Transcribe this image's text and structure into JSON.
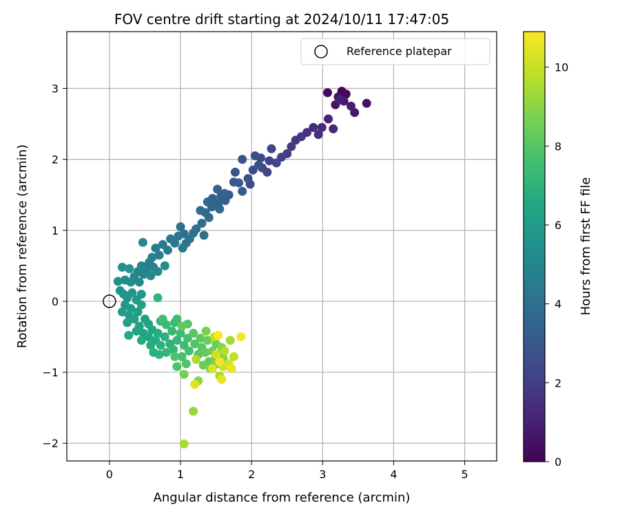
{
  "chart_data": {
    "type": "scatter",
    "title": "FOV centre drift starting at 2024/10/11 17:47:05",
    "xlabel": "Angular distance from reference (arcmin)",
    "ylabel": "Rotation from reference (arcmin)",
    "xlim": [
      -0.6,
      5.45
    ],
    "ylim": [
      -2.25,
      3.8
    ],
    "xticks": [
      0,
      1,
      2,
      3,
      4,
      5
    ],
    "yticks": [
      -2,
      -1,
      0,
      1,
      2,
      3
    ],
    "grid": true,
    "legend": {
      "placement": "top-right",
      "entries": [
        "Reference platepar"
      ]
    },
    "reference_point": {
      "x": 0,
      "y": 0
    },
    "colorbar": {
      "label": "Hours from first FF file",
      "colormap": "viridis",
      "range": [
        0,
        10.9
      ],
      "ticks": [
        0,
        2,
        4,
        6,
        8,
        10
      ]
    },
    "series": [
      {
        "color_by": "hours",
        "points": [
          {
            "x": 3.27,
            "y": 2.96,
            "h": 0.1
          },
          {
            "x": 3.33,
            "y": 2.92,
            "h": 0.2
          },
          {
            "x": 3.07,
            "y": 2.94,
            "h": 0.3
          },
          {
            "x": 3.22,
            "y": 2.88,
            "h": 0.4
          },
          {
            "x": 3.18,
            "y": 2.77,
            "h": 0.5
          },
          {
            "x": 3.62,
            "y": 2.79,
            "h": 0.6
          },
          {
            "x": 3.45,
            "y": 2.66,
            "h": 0.7
          },
          {
            "x": 3.3,
            "y": 2.82,
            "h": 0.8
          },
          {
            "x": 3.4,
            "y": 2.75,
            "h": 0.9
          },
          {
            "x": 3.24,
            "y": 2.84,
            "h": 1.0
          },
          {
            "x": 3.08,
            "y": 2.57,
            "h": 1.1
          },
          {
            "x": 3.15,
            "y": 2.43,
            "h": 1.2
          },
          {
            "x": 2.99,
            "y": 2.45,
            "h": 1.3
          },
          {
            "x": 2.87,
            "y": 2.45,
            "h": 1.4
          },
          {
            "x": 2.94,
            "y": 2.35,
            "h": 1.5
          },
          {
            "x": 2.78,
            "y": 2.38,
            "h": 1.6
          },
          {
            "x": 2.7,
            "y": 2.32,
            "h": 1.7
          },
          {
            "x": 2.62,
            "y": 2.27,
            "h": 1.8
          },
          {
            "x": 2.56,
            "y": 2.18,
            "h": 1.9
          },
          {
            "x": 2.5,
            "y": 2.08,
            "h": 2.0
          },
          {
            "x": 2.42,
            "y": 2.03,
            "h": 2.1
          },
          {
            "x": 2.35,
            "y": 1.95,
            "h": 2.2
          },
          {
            "x": 2.25,
            "y": 1.98,
            "h": 2.2
          },
          {
            "x": 2.22,
            "y": 1.82,
            "h": 2.3
          },
          {
            "x": 2.15,
            "y": 1.88,
            "h": 2.4
          },
          {
            "x": 2.13,
            "y": 2.02,
            "h": 2.5
          },
          {
            "x": 2.02,
            "y": 1.85,
            "h": 2.5
          },
          {
            "x": 1.98,
            "y": 1.65,
            "h": 2.6
          },
          {
            "x": 1.95,
            "y": 1.73,
            "h": 2.7
          },
          {
            "x": 2.1,
            "y": 1.92,
            "h": 2.7
          },
          {
            "x": 2.28,
            "y": 2.15,
            "h": 2.2
          },
          {
            "x": 2.05,
            "y": 2.05,
            "h": 2.6
          },
          {
            "x": 1.87,
            "y": 2.0,
            "h": 2.8
          },
          {
            "x": 1.77,
            "y": 1.82,
            "h": 2.9
          },
          {
            "x": 1.75,
            "y": 1.68,
            "h": 3.0
          },
          {
            "x": 1.87,
            "y": 1.55,
            "h": 3.0
          },
          {
            "x": 1.82,
            "y": 1.67,
            "h": 3.1
          },
          {
            "x": 1.68,
            "y": 1.5,
            "h": 3.2
          },
          {
            "x": 1.57,
            "y": 1.48,
            "h": 3.3
          },
          {
            "x": 1.63,
            "y": 1.42,
            "h": 3.3
          },
          {
            "x": 1.53,
            "y": 1.38,
            "h": 3.4
          },
          {
            "x": 1.45,
            "y": 1.45,
            "h": 3.4
          },
          {
            "x": 1.52,
            "y": 1.58,
            "h": 3.5
          },
          {
            "x": 1.62,
            "y": 1.52,
            "h": 3.5
          },
          {
            "x": 1.55,
            "y": 1.3,
            "h": 3.6
          },
          {
            "x": 1.44,
            "y": 1.33,
            "h": 3.6
          },
          {
            "x": 1.38,
            "y": 1.4,
            "h": 3.7
          },
          {
            "x": 1.35,
            "y": 1.25,
            "h": 3.7
          },
          {
            "x": 1.28,
            "y": 1.28,
            "h": 3.8
          },
          {
            "x": 1.4,
            "y": 1.18,
            "h": 3.8
          },
          {
            "x": 1.3,
            "y": 1.1,
            "h": 3.9
          },
          {
            "x": 1.22,
            "y": 1.02,
            "h": 3.9
          },
          {
            "x": 1.33,
            "y": 0.93,
            "h": 4.0
          },
          {
            "x": 1.18,
            "y": 0.96,
            "h": 4.0
          },
          {
            "x": 1.13,
            "y": 0.88,
            "h": 4.1
          },
          {
            "x": 1.05,
            "y": 0.95,
            "h": 4.1
          },
          {
            "x": 1.0,
            "y": 1.05,
            "h": 4.2
          },
          {
            "x": 1.08,
            "y": 0.82,
            "h": 4.2
          },
          {
            "x": 0.97,
            "y": 0.92,
            "h": 4.3
          },
          {
            "x": 0.92,
            "y": 0.82,
            "h": 4.3
          },
          {
            "x": 1.03,
            "y": 0.75,
            "h": 4.4
          },
          {
            "x": 0.86,
            "y": 0.88,
            "h": 4.4
          },
          {
            "x": 0.82,
            "y": 0.72,
            "h": 4.5
          },
          {
            "x": 0.75,
            "y": 0.8,
            "h": 4.5
          },
          {
            "x": 0.7,
            "y": 0.65,
            "h": 4.6
          },
          {
            "x": 0.65,
            "y": 0.75,
            "h": 4.6
          },
          {
            "x": 0.6,
            "y": 0.62,
            "h": 4.7
          },
          {
            "x": 0.56,
            "y": 0.55,
            "h": 4.7
          },
          {
            "x": 0.62,
            "y": 0.48,
            "h": 4.8
          },
          {
            "x": 0.52,
            "y": 0.45,
            "h": 4.8
          },
          {
            "x": 0.45,
            "y": 0.5,
            "h": 4.9
          },
          {
            "x": 0.48,
            "y": 0.38,
            "h": 4.9
          },
          {
            "x": 0.4,
            "y": 0.42,
            "h": 5.0
          },
          {
            "x": 0.35,
            "y": 0.35,
            "h": 5.0
          },
          {
            "x": 0.47,
            "y": 0.83,
            "h": 5.0
          },
          {
            "x": 0.58,
            "y": 0.36,
            "h": 5.1
          },
          {
            "x": 0.68,
            "y": 0.42,
            "h": 5.1
          },
          {
            "x": 0.78,
            "y": 0.5,
            "h": 5.2
          },
          {
            "x": 0.42,
            "y": 0.27,
            "h": 5.2
          },
          {
            "x": 0.3,
            "y": 0.27,
            "h": 5.3
          },
          {
            "x": 0.22,
            "y": 0.3,
            "h": 5.3
          },
          {
            "x": 0.12,
            "y": 0.28,
            "h": 5.4
          },
          {
            "x": 0.18,
            "y": 0.48,
            "h": 5.4
          },
          {
            "x": 0.28,
            "y": 0.46,
            "h": 5.5
          },
          {
            "x": 0.2,
            "y": 0.1,
            "h": 5.5
          },
          {
            "x": 0.15,
            "y": 0.15,
            "h": 5.6
          },
          {
            "x": 0.25,
            "y": 0.05,
            "h": 5.6
          },
          {
            "x": 0.32,
            "y": 0.12,
            "h": 5.7
          },
          {
            "x": 0.45,
            "y": 0.1,
            "h": 5.7
          },
          {
            "x": 0.38,
            "y": 0.02,
            "h": 5.8
          },
          {
            "x": 0.22,
            "y": -0.05,
            "h": 5.8
          },
          {
            "x": 0.3,
            "y": -0.1,
            "h": 5.9
          },
          {
            "x": 0.18,
            "y": -0.15,
            "h": 5.9
          },
          {
            "x": 0.28,
            "y": -0.2,
            "h": 6.0
          },
          {
            "x": 0.4,
            "y": -0.15,
            "h": 6.0
          },
          {
            "x": 0.35,
            "y": -0.25,
            "h": 6.1
          },
          {
            "x": 0.25,
            "y": -0.3,
            "h": 6.1
          },
          {
            "x": 0.45,
            "y": -0.05,
            "h": 6.2
          },
          {
            "x": 0.5,
            "y": -0.25,
            "h": 6.2
          },
          {
            "x": 0.42,
            "y": -0.35,
            "h": 6.3
          },
          {
            "x": 0.55,
            "y": -0.32,
            "h": 6.3
          },
          {
            "x": 0.38,
            "y": -0.42,
            "h": 6.4
          },
          {
            "x": 0.48,
            "y": -0.45,
            "h": 6.4
          },
          {
            "x": 0.6,
            "y": -0.4,
            "h": 6.5
          },
          {
            "x": 0.55,
            "y": -0.5,
            "h": 6.5
          },
          {
            "x": 0.27,
            "y": -0.48,
            "h": 6.6
          },
          {
            "x": 0.45,
            "y": -0.55,
            "h": 6.6
          },
          {
            "x": 0.65,
            "y": -0.55,
            "h": 6.7
          },
          {
            "x": 0.58,
            "y": -0.62,
            "h": 6.7
          },
          {
            "x": 0.68,
            "y": -0.45,
            "h": 6.8
          },
          {
            "x": 0.62,
            "y": -0.72,
            "h": 6.8
          },
          {
            "x": 0.72,
            "y": -0.62,
            "h": 6.9
          },
          {
            "x": 0.78,
            "y": -0.5,
            "h": 6.9
          },
          {
            "x": 0.7,
            "y": -0.75,
            "h": 7.0
          },
          {
            "x": 0.85,
            "y": -0.6,
            "h": 7.0
          },
          {
            "x": 0.8,
            "y": -0.72,
            "h": 7.1
          },
          {
            "x": 0.72,
            "y": -0.28,
            "h": 7.1
          },
          {
            "x": 0.68,
            "y": 0.05,
            "h": 7.1
          },
          {
            "x": 0.9,
            "y": -0.68,
            "h": 7.2
          },
          {
            "x": 0.95,
            "y": -0.55,
            "h": 7.2
          },
          {
            "x": 0.88,
            "y": -0.42,
            "h": 7.3
          },
          {
            "x": 0.92,
            "y": -0.3,
            "h": 7.3
          },
          {
            "x": 0.8,
            "y": -0.33,
            "h": 7.4
          },
          {
            "x": 1.0,
            "y": -0.45,
            "h": 7.4
          },
          {
            "x": 1.05,
            "y": -0.62,
            "h": 7.5
          },
          {
            "x": 0.95,
            "y": -0.25,
            "h": 7.5
          },
          {
            "x": 0.75,
            "y": -0.25,
            "h": 7.6
          },
          {
            "x": 1.1,
            "y": -0.52,
            "h": 7.6
          },
          {
            "x": 1.12,
            "y": -0.7,
            "h": 7.7
          },
          {
            "x": 1.02,
            "y": -0.78,
            "h": 7.7
          },
          {
            "x": 0.92,
            "y": -0.78,
            "h": 7.8
          },
          {
            "x": 0.95,
            "y": -0.92,
            "h": 7.8
          },
          {
            "x": 1.08,
            "y": -0.88,
            "h": 7.9
          },
          {
            "x": 1.2,
            "y": -0.6,
            "h": 7.9
          },
          {
            "x": 1.25,
            "y": -0.75,
            "h": 8.0
          },
          {
            "x": 1.1,
            "y": -0.32,
            "h": 8.0
          },
          {
            "x": 1.18,
            "y": -0.45,
            "h": 8.1
          },
          {
            "x": 1.3,
            "y": -0.65,
            "h": 8.1
          },
          {
            "x": 1.02,
            "y": -0.35,
            "h": 8.2
          },
          {
            "x": 1.28,
            "y": -0.52,
            "h": 8.2
          },
          {
            "x": 1.35,
            "y": -0.72,
            "h": 8.3
          },
          {
            "x": 1.4,
            "y": -0.85,
            "h": 8.3
          },
          {
            "x": 1.32,
            "y": -0.9,
            "h": 8.4
          },
          {
            "x": 1.38,
            "y": -0.55,
            "h": 8.4
          },
          {
            "x": 1.45,
            "y": -0.7,
            "h": 8.5
          },
          {
            "x": 1.5,
            "y": -0.6,
            "h": 8.5
          },
          {
            "x": 1.05,
            "y": -1.03,
            "h": 8.6
          },
          {
            "x": 1.48,
            "y": -0.82,
            "h": 8.6
          },
          {
            "x": 1.55,
            "y": -0.75,
            "h": 8.7
          },
          {
            "x": 1.36,
            "y": -0.42,
            "h": 8.7
          },
          {
            "x": 1.42,
            "y": -0.95,
            "h": 8.8
          },
          {
            "x": 1.52,
            "y": -0.88,
            "h": 8.8
          },
          {
            "x": 1.6,
            "y": -0.8,
            "h": 8.9
          },
          {
            "x": 1.58,
            "y": -0.65,
            "h": 8.9
          },
          {
            "x": 1.25,
            "y": -1.12,
            "h": 9.0
          },
          {
            "x": 1.18,
            "y": -1.55,
            "h": 9.2
          },
          {
            "x": 1.65,
            "y": -0.9,
            "h": 9.3
          },
          {
            "x": 1.7,
            "y": -0.55,
            "h": 9.4
          },
          {
            "x": 1.05,
            "y": -2.01,
            "h": 9.5
          },
          {
            "x": 1.55,
            "y": -1.05,
            "h": 9.5
          },
          {
            "x": 1.22,
            "y": -0.82,
            "h": 9.6
          },
          {
            "x": 1.62,
            "y": -0.7,
            "h": 9.7
          },
          {
            "x": 1.48,
            "y": -0.5,
            "h": 9.8
          },
          {
            "x": 1.75,
            "y": -0.78,
            "h": 9.9
          },
          {
            "x": 1.6,
            "y": -0.92,
            "h": 10.0
          },
          {
            "x": 1.5,
            "y": -0.75,
            "h": 10.1
          },
          {
            "x": 1.68,
            "y": -0.88,
            "h": 10.2
          },
          {
            "x": 1.45,
            "y": -0.95,
            "h": 10.3
          },
          {
            "x": 1.2,
            "y": -1.17,
            "h": 10.4
          },
          {
            "x": 1.58,
            "y": -1.1,
            "h": 10.5
          },
          {
            "x": 1.72,
            "y": -0.95,
            "h": 10.6
          },
          {
            "x": 1.55,
            "y": -0.85,
            "h": 10.7
          },
          {
            "x": 1.85,
            "y": -0.5,
            "h": 10.8
          },
          {
            "x": 1.53,
            "y": -0.48,
            "h": 10.9
          }
        ]
      }
    ]
  }
}
